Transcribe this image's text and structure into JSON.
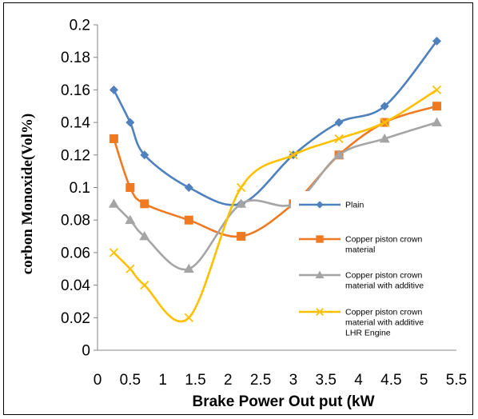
{
  "chart_data": {
    "type": "line",
    "title": "",
    "xlabel": "Brake Power Out put (kW",
    "ylabel": "corbon Monoxide(Vol%)",
    "xlim": [
      0,
      5.5
    ],
    "ylim": [
      0,
      0.2
    ],
    "xticks": [
      "0",
      "0.5",
      "1",
      "1.5",
      "2",
      "2.5",
      "3",
      "3.5",
      "4",
      "4.5",
      "5",
      "5.5"
    ],
    "yticks": [
      "0",
      "0.02",
      "0.04",
      "0.06",
      "0.08",
      "0.1",
      "0.12",
      "0.14",
      "0.16",
      "0.18",
      "0.2"
    ],
    "grid": false,
    "legend_position": "right",
    "series": [
      {
        "name": [
          "Plain"
        ],
        "color": "#4f81bd",
        "marker": "diamond",
        "x": [
          0.25,
          0.5,
          0.72,
          1.4,
          2.2,
          3.0,
          3.7,
          4.4,
          5.2
        ],
        "y": [
          0.16,
          0.14,
          0.12,
          0.1,
          0.09,
          0.12,
          0.14,
          0.15,
          0.19
        ]
      },
      {
        "name": [
          "Copper piston crown",
          "material"
        ],
        "color": "#f07a22",
        "marker": "square",
        "x": [
          0.25,
          0.5,
          0.72,
          1.4,
          2.2,
          3.0,
          3.7,
          4.4,
          5.2
        ],
        "y": [
          0.13,
          0.1,
          0.09,
          0.08,
          0.07,
          0.09,
          0.12,
          0.14,
          0.15
        ]
      },
      {
        "name": [
          "Copper piston crown",
          "material  with additive"
        ],
        "color": "#a5a5a5",
        "marker": "triangle",
        "x": [
          0.25,
          0.5,
          0.72,
          1.4,
          2.2,
          3.0,
          3.7,
          4.4,
          5.2
        ],
        "y": [
          0.09,
          0.08,
          0.07,
          0.05,
          0.09,
          0.09,
          0.12,
          0.13,
          0.14
        ]
      },
      {
        "name": [
          "Copper piston crown",
          "material  with additive",
          "LHR Engine"
        ],
        "color": "#ffc000",
        "marker": "x",
        "x": [
          0.25,
          0.5,
          0.72,
          1.4,
          2.2,
          3.0,
          3.7,
          4.4,
          5.2
        ],
        "y": [
          0.06,
          0.05,
          0.04,
          0.02,
          0.1,
          0.12,
          0.13,
          0.14,
          0.16
        ]
      }
    ]
  }
}
